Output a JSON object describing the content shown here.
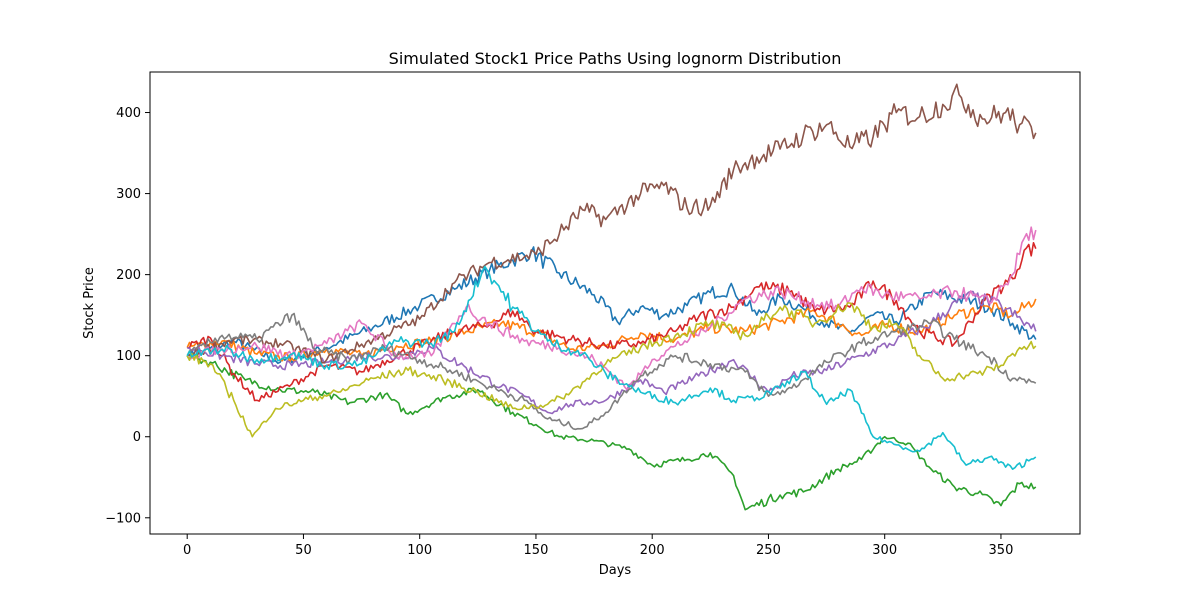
{
  "chart_data": {
    "type": "line",
    "title": "Simulated Stock1 Price Paths Using lognorm Distribution",
    "xlabel": "Days",
    "ylabel": "Stock Price",
    "xlim": [
      -16,
      384
    ],
    "ylim": [
      -120,
      450
    ],
    "xticks": [
      0,
      50,
      100,
      150,
      200,
      250,
      300,
      350
    ],
    "yticks": [
      -100,
      0,
      100,
      200,
      300,
      400
    ],
    "grid": false,
    "legend": "none",
    "series": [
      {
        "color": "#1f77b4",
        "points": [
          [
            0,
            100
          ],
          [
            20,
            118
          ],
          [
            40,
            92
          ],
          [
            60,
            110
          ],
          [
            80,
            135
          ],
          [
            100,
            162
          ],
          [
            115,
            182
          ],
          [
            130,
            205
          ],
          [
            140,
            218
          ],
          [
            148,
            228
          ],
          [
            160,
            202
          ],
          [
            175,
            175
          ],
          [
            185,
            142
          ],
          [
            195,
            160
          ],
          [
            205,
            150
          ],
          [
            215,
            162
          ],
          [
            225,
            178
          ],
          [
            235,
            182
          ],
          [
            245,
            150
          ],
          [
            255,
            172
          ],
          [
            265,
            158
          ],
          [
            275,
            140
          ],
          [
            285,
            128
          ],
          [
            295,
            150
          ],
          [
            305,
            142
          ],
          [
            320,
            178
          ],
          [
            335,
            168
          ],
          [
            345,
            160
          ],
          [
            355,
            140
          ],
          [
            365,
            120
          ]
        ]
      },
      {
        "color": "#ff7f0e",
        "points": [
          [
            0,
            110
          ],
          [
            15,
            118
          ],
          [
            30,
            102
          ],
          [
            45,
            97
          ],
          [
            60,
            108
          ],
          [
            75,
            100
          ],
          [
            90,
            112
          ],
          [
            105,
            118
          ],
          [
            120,
            130
          ],
          [
            135,
            140
          ],
          [
            150,
            130
          ],
          [
            165,
            108
          ],
          [
            180,
            112
          ],
          [
            195,
            128
          ],
          [
            210,
            120
          ],
          [
            225,
            135
          ],
          [
            240,
            130
          ],
          [
            255,
            142
          ],
          [
            270,
            155
          ],
          [
            280,
            140
          ],
          [
            290,
            125
          ],
          [
            300,
            138
          ],
          [
            315,
            130
          ],
          [
            330,
            150
          ],
          [
            345,
            160
          ],
          [
            355,
            150
          ],
          [
            365,
            170
          ]
        ]
      },
      {
        "color": "#2ca02c",
        "points": [
          [
            0,
            100
          ],
          [
            10,
            92
          ],
          [
            25,
            70
          ],
          [
            40,
            58
          ],
          [
            55,
            55
          ],
          [
            70,
            42
          ],
          [
            85,
            52
          ],
          [
            95,
            28
          ],
          [
            110,
            48
          ],
          [
            125,
            58
          ],
          [
            140,
            30
          ],
          [
            150,
            15
          ],
          [
            160,
            0
          ],
          [
            175,
            -5
          ],
          [
            190,
            -15
          ],
          [
            200,
            -35
          ],
          [
            215,
            -28
          ],
          [
            225,
            -20
          ],
          [
            235,
            -48
          ],
          [
            240,
            -90
          ],
          [
            255,
            -72
          ],
          [
            265,
            -68
          ],
          [
            280,
            -40
          ],
          [
            290,
            -28
          ],
          [
            300,
            0
          ],
          [
            310,
            -8
          ],
          [
            320,
            -40
          ],
          [
            330,
            -62
          ],
          [
            340,
            -70
          ],
          [
            350,
            -85
          ],
          [
            358,
            -58
          ],
          [
            365,
            -62
          ]
        ]
      },
      {
        "color": "#d62728",
        "points": [
          [
            0,
            110
          ],
          [
            10,
            122
          ],
          [
            20,
            78
          ],
          [
            30,
            45
          ],
          [
            45,
            65
          ],
          [
            60,
            88
          ],
          [
            75,
            80
          ],
          [
            90,
            100
          ],
          [
            105,
            118
          ],
          [
            115,
            130
          ],
          [
            130,
            138
          ],
          [
            140,
            155
          ],
          [
            150,
            130
          ],
          [
            165,
            120
          ],
          [
            180,
            112
          ],
          [
            195,
            115
          ],
          [
            210,
            130
          ],
          [
            220,
            148
          ],
          [
            235,
            160
          ],
          [
            245,
            185
          ],
          [
            260,
            180
          ],
          [
            270,
            155
          ],
          [
            285,
            160
          ],
          [
            295,
            192
          ],
          [
            305,
            168
          ],
          [
            315,
            130
          ],
          [
            330,
            115
          ],
          [
            345,
            175
          ],
          [
            355,
            195
          ],
          [
            360,
            230
          ],
          [
            365,
            232
          ]
        ]
      },
      {
        "color": "#9467bd",
        "points": [
          [
            0,
            110
          ],
          [
            15,
            100
          ],
          [
            30,
            90
          ],
          [
            45,
            88
          ],
          [
            60,
            92
          ],
          [
            75,
            100
          ],
          [
            90,
            98
          ],
          [
            105,
            110
          ],
          [
            120,
            85
          ],
          [
            135,
            62
          ],
          [
            145,
            50
          ],
          [
            155,
            30
          ],
          [
            165,
            40
          ],
          [
            180,
            45
          ],
          [
            195,
            70
          ],
          [
            205,
            55
          ],
          [
            220,
            75
          ],
          [
            235,
            95
          ],
          [
            250,
            55
          ],
          [
            260,
            75
          ],
          [
            275,
            82
          ],
          [
            290,
            100
          ],
          [
            305,
            118
          ],
          [
            320,
            140
          ],
          [
            335,
            175
          ],
          [
            350,
            162
          ],
          [
            365,
            130
          ]
        ]
      },
      {
        "color": "#8c564b",
        "points": [
          [
            0,
            100
          ],
          [
            20,
            120
          ],
          [
            40,
            115
          ],
          [
            60,
            95
          ],
          [
            80,
            120
          ],
          [
            100,
            145
          ],
          [
            115,
            190
          ],
          [
            130,
            215
          ],
          [
            150,
            225
          ],
          [
            160,
            250
          ],
          [
            170,
            280
          ],
          [
            180,
            268
          ],
          [
            195,
            300
          ],
          [
            205,
            310
          ],
          [
            215,
            282
          ],
          [
            225,
            285
          ],
          [
            235,
            330
          ],
          [
            245,
            345
          ],
          [
            255,
            355
          ],
          [
            265,
            372
          ],
          [
            275,
            385
          ],
          [
            285,
            358
          ],
          [
            295,
            370
          ],
          [
            305,
            400
          ],
          [
            315,
            395
          ],
          [
            325,
            410
          ],
          [
            332,
            422
          ],
          [
            342,
            392
          ],
          [
            352,
            400
          ],
          [
            358,
            385
          ],
          [
            365,
            375
          ]
        ]
      },
      {
        "color": "#e377c2",
        "points": [
          [
            0,
            100
          ],
          [
            15,
            108
          ],
          [
            30,
            112
          ],
          [
            45,
            100
          ],
          [
            60,
            115
          ],
          [
            75,
            140
          ],
          [
            90,
            100
          ],
          [
            105,
            100
          ],
          [
            120,
            160
          ],
          [
            130,
            140
          ],
          [
            145,
            118
          ],
          [
            160,
            110
          ],
          [
            175,
            95
          ],
          [
            190,
            60
          ],
          [
            200,
            95
          ],
          [
            210,
            112
          ],
          [
            225,
            135
          ],
          [
            240,
            170
          ],
          [
            255,
            180
          ],
          [
            265,
            168
          ],
          [
            280,
            160
          ],
          [
            290,
            185
          ],
          [
            300,
            175
          ],
          [
            315,
            170
          ],
          [
            330,
            180
          ],
          [
            345,
            165
          ],
          [
            355,
            200
          ],
          [
            360,
            245
          ],
          [
            365,
            255
          ]
        ]
      },
      {
        "color": "#7f7f7f",
        "points": [
          [
            0,
            100
          ],
          [
            15,
            125
          ],
          [
            30,
            120
          ],
          [
            45,
            150
          ],
          [
            55,
            108
          ],
          [
            70,
            95
          ],
          [
            85,
            110
          ],
          [
            100,
            95
          ],
          [
            115,
            80
          ],
          [
            130,
            62
          ],
          [
            145,
            45
          ],
          [
            155,
            22
          ],
          [
            170,
            10
          ],
          [
            180,
            30
          ],
          [
            195,
            75
          ],
          [
            210,
            100
          ],
          [
            225,
            90
          ],
          [
            240,
            80
          ],
          [
            250,
            50
          ],
          [
            260,
            60
          ],
          [
            275,
            92
          ],
          [
            290,
            115
          ],
          [
            305,
            130
          ],
          [
            320,
            140
          ],
          [
            330,
            120
          ],
          [
            345,
            98
          ],
          [
            355,
            72
          ],
          [
            365,
            66
          ]
        ]
      },
      {
        "color": "#bcbd22",
        "points": [
          [
            0,
            100
          ],
          [
            10,
            90
          ],
          [
            20,
            45
          ],
          [
            28,
            0
          ],
          [
            38,
            35
          ],
          [
            50,
            45
          ],
          [
            65,
            55
          ],
          [
            80,
            72
          ],
          [
            95,
            82
          ],
          [
            110,
            70
          ],
          [
            125,
            55
          ],
          [
            140,
            35
          ],
          [
            155,
            40
          ],
          [
            165,
            55
          ],
          [
            180,
            90
          ],
          [
            195,
            110
          ],
          [
            210,
            125
          ],
          [
            225,
            140
          ],
          [
            240,
            125
          ],
          [
            255,
            160
          ],
          [
            270,
            140
          ],
          [
            285,
            165
          ],
          [
            295,
            135
          ],
          [
            305,
            140
          ],
          [
            315,
            100
          ],
          [
            325,
            72
          ],
          [
            340,
            78
          ],
          [
            350,
            88
          ],
          [
            358,
            110
          ],
          [
            365,
            112
          ]
        ]
      },
      {
        "color": "#17becf",
        "points": [
          [
            0,
            100
          ],
          [
            15,
            108
          ],
          [
            30,
            95
          ],
          [
            45,
            102
          ],
          [
            60,
            88
          ],
          [
            75,
            90
          ],
          [
            90,
            118
          ],
          [
            105,
            115
          ],
          [
            115,
            130
          ],
          [
            128,
            210
          ],
          [
            140,
            160
          ],
          [
            155,
            118
          ],
          [
            170,
            102
          ],
          [
            180,
            78
          ],
          [
            195,
            55
          ],
          [
            210,
            42
          ],
          [
            225,
            60
          ],
          [
            235,
            45
          ],
          [
            245,
            48
          ],
          [
            255,
            60
          ],
          [
            265,
            80
          ],
          [
            275,
            40
          ],
          [
            285,
            58
          ],
          [
            295,
            0
          ],
          [
            305,
            -10
          ],
          [
            315,
            -18
          ],
          [
            325,
            5
          ],
          [
            335,
            -35
          ],
          [
            345,
            -25
          ],
          [
            355,
            -40
          ],
          [
            365,
            -25
          ]
        ]
      }
    ]
  }
}
